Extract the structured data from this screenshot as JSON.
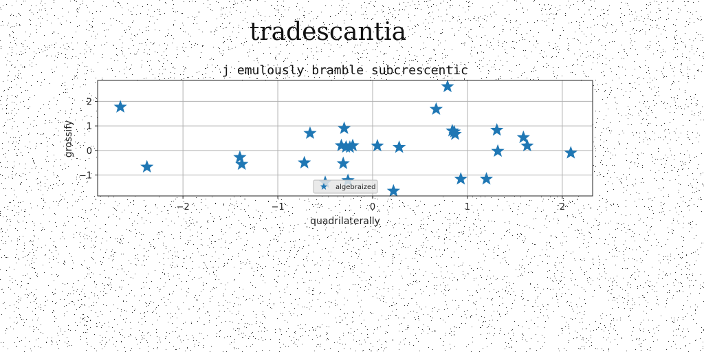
{
  "figure": {
    "suptitle": "tradescantia"
  },
  "chart_data": {
    "type": "scatter",
    "title": "j emulously bramble subcrescentic",
    "xlabel": "quadrilaterally",
    "ylabel": "grossify",
    "xlim": [
      -2.9,
      2.32
    ],
    "ylim": [
      -1.85,
      2.85
    ],
    "xticks": [
      -2,
      -1,
      0,
      1,
      2
    ],
    "xtick_labels": [
      "−2",
      "−1",
      "0",
      "1",
      "2"
    ],
    "yticks": [
      -1,
      0,
      1,
      2
    ],
    "ytick_labels": [
      "−1",
      "0",
      "1",
      "2"
    ],
    "grid": true,
    "legend_position": "lower center",
    "series": [
      {
        "name": "algebraized",
        "marker": "star",
        "color": "#1f77b4",
        "x": [
          -2.66,
          -2.38,
          -1.4,
          -1.38,
          -0.72,
          -0.66,
          -0.5,
          -0.33,
          -0.31,
          -0.3,
          -0.28,
          -0.26,
          -0.24,
          -0.21,
          0.05,
          0.22,
          0.28,
          0.67,
          0.79,
          0.84,
          0.86,
          0.87,
          0.93,
          1.2,
          1.31,
          1.32,
          1.59,
          1.63,
          2.09
        ],
        "y": [
          1.77,
          -0.67,
          -0.28,
          -0.56,
          -0.5,
          0.7,
          -1.3,
          0.2,
          -0.53,
          0.9,
          0.14,
          -1.22,
          0.13,
          0.2,
          0.19,
          -1.65,
          0.13,
          1.68,
          2.6,
          0.8,
          0.76,
          0.66,
          -1.16,
          -1.16,
          0.83,
          -0.03,
          0.53,
          0.19,
          -0.1
        ]
      }
    ]
  }
}
